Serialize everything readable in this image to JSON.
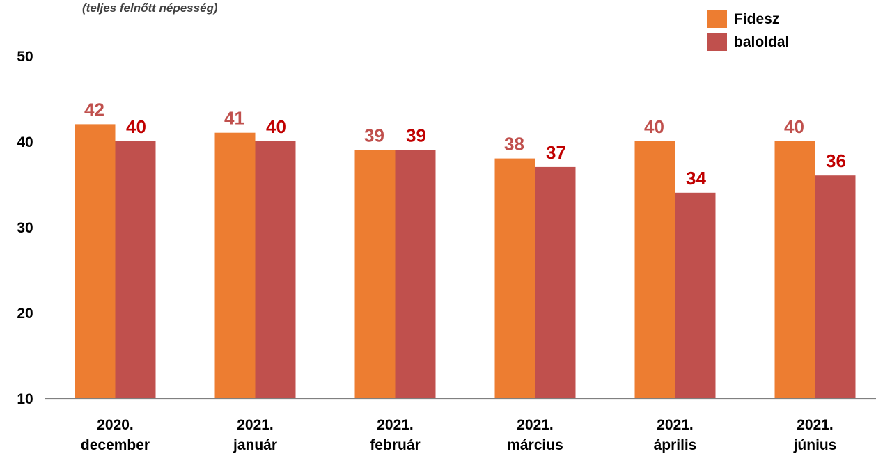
{
  "subtitle": "(teljes felnőtt népesség)",
  "colors": {
    "fidesz_bar": "#ED7D31",
    "baloldal_bar": "#C0504D",
    "fidesz_label": "#C0504D",
    "baloldal_label": "#C00000",
    "axis": "#808080"
  },
  "chart_data": {
    "type": "bar",
    "categories": [
      [
        "2020.",
        "december"
      ],
      [
        "2021.",
        "január"
      ],
      [
        "2021.",
        "február"
      ],
      [
        "2021.",
        "március"
      ],
      [
        "2021.",
        "április"
      ],
      [
        "2021.",
        "június"
      ]
    ],
    "series": [
      {
        "name": "Fidesz",
        "values": [
          42,
          41,
          39,
          38,
          40,
          40
        ]
      },
      {
        "name": "baloldal",
        "values": [
          40,
          40,
          39,
          37,
          34,
          36
        ]
      }
    ],
    "ylim": [
      10,
      50
    ],
    "yticks": [
      "10",
      "20",
      "30",
      "40",
      "50"
    ],
    "grid": false,
    "legend_position": "top-right"
  }
}
